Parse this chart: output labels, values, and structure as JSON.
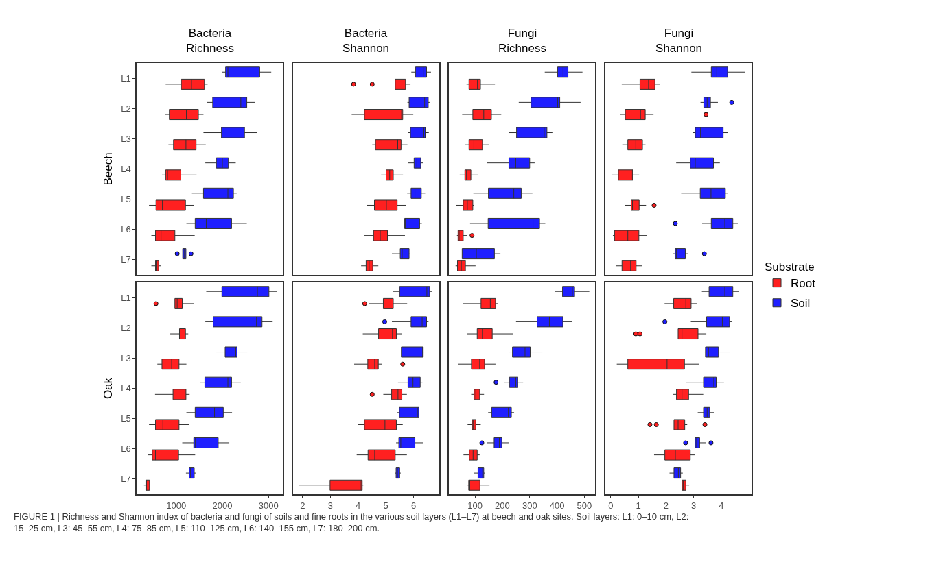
{
  "chart_data": [
    {
      "type": "box",
      "orientation": "horizontal",
      "title": "Bacteria\nRichness",
      "ylabel": "Beech",
      "categories": [
        "L1",
        "L2",
        "L3",
        "L4",
        "L5",
        "L6",
        "L7"
      ],
      "xlim": [
        140,
        3310
      ],
      "tick_labels": "y",
      "legend": "right",
      "legend_title": "Substrate",
      "series": [
        {
          "name": "Root",
          "color": "#ff2020",
          "boxes": [
            {
              "low": 770,
              "q1": 1110,
              "median": 1330,
              "q3": 1610,
              "high": 1680
            },
            {
              "low": 760,
              "q1": 850,
              "median": 1220,
              "q3": 1480,
              "high": 1590
            },
            {
              "low": 830,
              "q1": 940,
              "median": 1210,
              "q3": 1430,
              "high": 1640
            },
            {
              "low": 690,
              "q1": 770,
              "median": 810,
              "q3": 1100,
              "high": 1440
            },
            {
              "low": 410,
              "q1": 560,
              "median": 700,
              "q3": 1200,
              "high": 1390
            },
            {
              "low": 460,
              "q1": 550,
              "median": 670,
              "q3": 970,
              "high": 1400
            },
            {
              "low": 460,
              "q1": 550,
              "median": 580,
              "q3": 620,
              "high": 670
            }
          ]
        },
        {
          "name": "Soil",
          "color": "#1f1fff",
          "boxes": [
            {
              "low": 2000,
              "q1": 2070,
              "median": 2120,
              "q3": 2810,
              "high": 3060
            },
            {
              "low": 1660,
              "q1": 1790,
              "median": 2400,
              "q3": 2530,
              "high": 2710
            },
            {
              "low": 1590,
              "q1": 1980,
              "median": 2380,
              "q3": 2480,
              "high": 2750
            },
            {
              "low": 1630,
              "q1": 1870,
              "median": 2000,
              "q3": 2130,
              "high": 2290
            },
            {
              "low": 1340,
              "q1": 1590,
              "median": 2120,
              "q3": 2240,
              "high": 2310
            },
            {
              "low": 1220,
              "q1": 1410,
              "median": 1650,
              "q3": 2200,
              "high": 2530
            },
            {
              "low": 1140,
              "q1": 1140,
              "median": 1170,
              "q3": 1210,
              "high": 1210,
              "outliers": [
                1020,
                1320
              ]
            }
          ]
        }
      ]
    },
    {
      "type": "box",
      "orientation": "horizontal",
      "title": "Bacteria\nShannon",
      "categories": [
        null,
        null,
        null,
        null,
        null,
        null,
        null
      ],
      "xlim": [
        1.65,
        6.92
      ],
      "tick_labels": false,
      "series": [
        {
          "color": "#ff2020",
          "boxes": [
            {
              "low": 5.34,
              "q1": 5.34,
              "median": 5.48,
              "q3": 5.71,
              "high": 5.89,
              "outliers": [
                3.84,
                4.51
              ]
            },
            {
              "low": 3.77,
              "q1": 4.23,
              "median": 5.57,
              "q3": 5.61,
              "high": 5.99
            },
            {
              "low": 4.51,
              "q1": 4.63,
              "median": 5.43,
              "q3": 5.55,
              "high": 5.78
            },
            {
              "low": 4.83,
              "q1": 5.01,
              "median": 5.14,
              "q3": 5.27,
              "high": 5.62
            },
            {
              "low": 4.31,
              "q1": 4.59,
              "median": 5.02,
              "q3": 5.41,
              "high": 5.74
            },
            {
              "low": 4.23,
              "q1": 4.56,
              "median": 4.8,
              "q3": 5.06,
              "high": 5.69
            },
            {
              "low": 4.11,
              "q1": 4.29,
              "median": 4.4,
              "q3": 4.53,
              "high": 4.73
            }
          ]
        },
        {
          "color": "#1f1fff",
          "boxes": [
            {
              "low": 5.92,
              "q1": 6.07,
              "median": 6.35,
              "q3": 6.47,
              "high": 6.63
            },
            {
              "low": 5.78,
              "q1": 5.84,
              "median": 6.4,
              "q3": 6.53,
              "high": 6.58
            },
            {
              "low": 5.81,
              "q1": 5.89,
              "median": 6.37,
              "q3": 6.42,
              "high": 6.55
            },
            {
              "low": 5.8,
              "q1": 6.02,
              "median": 6.12,
              "q3": 6.26,
              "high": 6.34
            },
            {
              "low": 5.77,
              "q1": 5.91,
              "median": 6.05,
              "q3": 6.28,
              "high": 6.42
            },
            {
              "low": 5.68,
              "q1": 5.68,
              "median": 5.7,
              "q3": 6.22,
              "high": 6.3
            },
            {
              "low": 5.22,
              "q1": 5.52,
              "median": 5.59,
              "q3": 5.84,
              "high": 5.85
            }
          ]
        }
      ]
    },
    {
      "type": "box",
      "orientation": "horizontal",
      "title": "Fungi\nRichness",
      "categories": [
        null,
        null,
        null,
        null,
        null,
        null,
        null
      ],
      "xlim": [
        5.5,
        540
      ],
      "tick_labels": false,
      "series": [
        {
          "color": "#ff2020",
          "boxes": [
            {
              "low": 69,
              "q1": 78,
              "median": 109,
              "q3": 120,
              "high": 173
            },
            {
              "low": 53,
              "q1": 92,
              "median": 132,
              "q3": 160,
              "high": 196
            },
            {
              "low": 64,
              "q1": 78,
              "median": 96,
              "q3": 127,
              "high": 151
            },
            {
              "low": 44,
              "q1": 63,
              "median": 69,
              "q3": 85,
              "high": 112
            },
            {
              "low": 32,
              "q1": 57,
              "median": 72,
              "q3": 92,
              "high": 97
            },
            {
              "low": 34,
              "q1": 38,
              "median": 42,
              "q3": 57,
              "high": 71,
              "outliers": [
                89
              ]
            },
            {
              "low": 29,
              "q1": 36,
              "median": 50,
              "q3": 65,
              "high": 102
            }
          ]
        },
        {
          "color": "#1f1fff",
          "boxes": [
            {
              "low": 355,
              "q1": 402,
              "median": 422,
              "q3": 440,
              "high": 493
            },
            {
              "low": 260,
              "q1": 305,
              "median": 402,
              "q3": 410,
              "high": 486
            },
            {
              "low": 224,
              "q1": 252,
              "median": 353,
              "q3": 363,
              "high": 383
            },
            {
              "low": 143,
              "q1": 224,
              "median": 249,
              "q3": 300,
              "high": 318
            },
            {
              "low": 94,
              "q1": 149,
              "median": 242,
              "q3": 269,
              "high": 310
            },
            {
              "low": 82,
              "q1": 148,
              "median": 312,
              "q3": 336,
              "high": 357
            },
            {
              "low": 53,
              "q1": 53,
              "median": 105,
              "q3": 171,
              "high": 193
            }
          ]
        }
      ]
    },
    {
      "type": "box",
      "orientation": "horizontal",
      "title": "Fungi\nShannon",
      "categories": [
        null,
        null,
        null,
        null,
        null,
        null,
        null
      ],
      "xlim": [
        -0.19,
        5.1
      ],
      "tick_labels": false,
      "series": [
        {
          "color": "#ff2020",
          "boxes": [
            {
              "low": 0.4,
              "q1": 1.06,
              "median": 1.37,
              "q3": 1.6,
              "high": 1.78
            },
            {
              "low": 0.34,
              "q1": 0.53,
              "median": 1.08,
              "q3": 1.25,
              "high": 1.55,
              "outliers": [
                3.45
              ]
            },
            {
              "low": 0.42,
              "q1": 0.62,
              "median": 0.91,
              "q3": 1.15,
              "high": 1.26
            },
            {
              "low": 0.03,
              "q1": 0.28,
              "median": 0.8,
              "q3": 0.81,
              "high": 1.03
            },
            {
              "low": 0.52,
              "q1": 0.74,
              "median": 0.79,
              "q3": 1.03,
              "high": 1.28,
              "outliers": [
                1.57
              ]
            },
            {
              "low": 0.08,
              "q1": 0.14,
              "median": 0.62,
              "q3": 1.02,
              "high": 1.31
            },
            {
              "low": 0.18,
              "q1": 0.41,
              "median": 0.72,
              "q3": 0.92,
              "high": 1.13
            }
          ]
        },
        {
          "color": "#1f1fff",
          "boxes": [
            {
              "low": 2.92,
              "q1": 3.64,
              "median": 3.84,
              "q3": 4.23,
              "high": 4.85
            },
            {
              "low": 3.25,
              "q1": 3.37,
              "median": 3.49,
              "q3": 3.61,
              "high": 3.88,
              "outliers": [
                4.38
              ]
            },
            {
              "low": 2.97,
              "q1": 3.06,
              "median": 3.25,
              "q3": 4.07,
              "high": 4.23
            },
            {
              "low": 2.37,
              "q1": 2.88,
              "median": 3.06,
              "q3": 3.72,
              "high": 3.95
            },
            {
              "low": 2.55,
              "q1": 3.24,
              "median": 3.63,
              "q3": 4.15,
              "high": 4.23
            },
            {
              "low": 3.31,
              "q1": 3.64,
              "median": 4.13,
              "q3": 4.42,
              "high": 4.6,
              "outliers": [
                2.34
              ]
            },
            {
              "low": 2.25,
              "q1": 2.34,
              "median": 2.38,
              "q3": 2.7,
              "high": 2.8,
              "outliers": [
                3.39
              ]
            }
          ]
        }
      ]
    },
    {
      "type": "box",
      "orientation": "horizontal",
      "ylabel": "Oak",
      "categories": [
        "L1",
        "L2",
        "L3",
        "L4",
        "L5",
        "L6",
        "L7"
      ],
      "xlim": [
        140,
        3310
      ],
      "xticks": [
        1000,
        2000,
        3000
      ],
      "series": [
        {
          "color": "#ff2020",
          "boxes": [
            {
              "low": 970,
              "q1": 970,
              "median": 1020,
              "q3": 1130,
              "high": 1380,
              "outliers": [
                560
              ]
            },
            {
              "low": 870,
              "q1": 1070,
              "median": 1100,
              "q3": 1200,
              "high": 1260
            },
            {
              "low": 590,
              "q1": 690,
              "median": 900,
              "q3": 1060,
              "high": 1220
            },
            {
              "low": 540,
              "q1": 930,
              "median": 1190,
              "q3": 1210,
              "high": 1290
            },
            {
              "low": 410,
              "q1": 550,
              "median": 710,
              "q3": 1060,
              "high": 1280
            },
            {
              "low": 390,
              "q1": 480,
              "median": 550,
              "q3": 1050,
              "high": 1410
            },
            {
              "low": 300,
              "q1": 340,
              "median": 350,
              "q3": 420,
              "high": 420
            }
          ]
        },
        {
          "color": "#1f1fff",
          "boxes": [
            {
              "low": 1650,
              "q1": 1990,
              "median": 2760,
              "q3": 3010,
              "high": 3180
            },
            {
              "low": 1630,
              "q1": 1800,
              "median": 2740,
              "q3": 2860,
              "high": 3090
            },
            {
              "low": 1870,
              "q1": 2060,
              "median": 2290,
              "q3": 2320,
              "high": 2540
            },
            {
              "low": 1510,
              "q1": 1620,
              "median": 2120,
              "q3": 2200,
              "high": 2400
            },
            {
              "low": 1220,
              "q1": 1410,
              "median": 1830,
              "q3": 2020,
              "high": 2210
            },
            {
              "low": 1130,
              "q1": 1380,
              "median": 1410,
              "q3": 1910,
              "high": 2150
            },
            {
              "low": 1210,
              "q1": 1280,
              "median": 1310,
              "q3": 1390,
              "high": 1420
            }
          ]
        }
      ]
    },
    {
      "type": "box",
      "orientation": "horizontal",
      "categories": [
        null,
        null,
        null,
        null,
        null,
        null,
        null
      ],
      "xlim": [
        1.65,
        6.92
      ],
      "xticks": [
        2,
        3,
        4,
        5,
        6
      ],
      "tick_labels": "x",
      "series": [
        {
          "color": "#ff2020",
          "boxes": [
            {
              "low": 4.38,
              "q1": 4.91,
              "median": 5.01,
              "q3": 5.27,
              "high": 5.77,
              "outliers": [
                4.24
              ]
            },
            {
              "low": 4.17,
              "q1": 4.74,
              "median": 5.24,
              "q3": 5.38,
              "high": 5.59
            },
            {
              "low": 3.86,
              "q1": 4.35,
              "median": 4.6,
              "q3": 4.73,
              "high": 4.86,
              "outliers": [
                5.61
              ]
            },
            {
              "low": 4.91,
              "q1": 5.21,
              "median": 5.44,
              "q3": 5.58,
              "high": 5.76,
              "outliers": [
                4.51
              ]
            },
            {
              "low": 3.99,
              "q1": 4.23,
              "median": 4.97,
              "q3": 5.38,
              "high": 5.61
            },
            {
              "low": 3.95,
              "q1": 4.36,
              "median": 4.6,
              "q3": 5.34,
              "high": 5.76
            },
            {
              "low": 1.88,
              "q1": 2.99,
              "median": 4.11,
              "q3": 4.15,
              "high": 4.19
            }
          ]
        },
        {
          "color": "#1f1fff",
          "boxes": [
            {
              "low": 5.26,
              "q1": 5.5,
              "median": 6.48,
              "q3": 6.58,
              "high": 6.68
            },
            {
              "low": 5.22,
              "q1": 5.91,
              "median": 6.31,
              "q3": 6.47,
              "high": 6.54,
              "outliers": [
                4.96
              ]
            },
            {
              "low": 5.56,
              "q1": 5.56,
              "median": 6.33,
              "q3": 6.35,
              "high": 6.39
            },
            {
              "low": 5.44,
              "q1": 5.8,
              "median": 5.98,
              "q3": 6.24,
              "high": 6.32
            },
            {
              "low": 5.4,
              "q1": 5.49,
              "median": 6.14,
              "q3": 6.19,
              "high": 6.19
            },
            {
              "low": 5.37,
              "q1": 5.47,
              "median": 5.54,
              "q3": 6.05,
              "high": 6.34
            },
            {
              "low": 5.33,
              "q1": 5.37,
              "median": 5.42,
              "q3": 5.5,
              "high": 5.54
            }
          ]
        }
      ]
    },
    {
      "type": "box",
      "orientation": "horizontal",
      "categories": [
        null,
        null,
        null,
        null,
        null,
        null,
        null
      ],
      "xlim": [
        5.5,
        540
      ],
      "xticks": [
        100,
        200,
        300,
        400,
        500
      ],
      "tick_labels": "x",
      "series": [
        {
          "color": "#ff2020",
          "boxes": [
            {
              "low": 56,
              "q1": 122,
              "median": 156,
              "q3": 175,
              "high": 184
            },
            {
              "low": 72,
              "q1": 108,
              "median": 127,
              "q3": 163,
              "high": 238
            },
            {
              "low": 39,
              "q1": 87,
              "median": 117,
              "q3": 135,
              "high": 175
            },
            {
              "low": 86,
              "q1": 97,
              "median": 103,
              "q3": 117,
              "high": 133
            },
            {
              "low": 73,
              "q1": 90,
              "median": 93,
              "q3": 103,
              "high": 121
            },
            {
              "low": 58,
              "q1": 79,
              "median": 93,
              "q3": 108,
              "high": 117
            },
            {
              "low": 73,
              "q1": 77,
              "median": 81,
              "q3": 118,
              "high": 153
            }
          ]
        },
        {
          "color": "#1f1fff",
          "boxes": [
            {
              "low": 392,
              "q1": 420,
              "median": 456,
              "q3": 464,
              "high": 518
            },
            {
              "low": 250,
              "q1": 327,
              "median": 372,
              "q3": 421,
              "high": 455
            },
            {
              "low": 224,
              "q1": 237,
              "median": 283,
              "q3": 302,
              "high": 347
            },
            {
              "low": 206,
              "q1": 226,
              "median": 249,
              "q3": 255,
              "high": 276,
              "outliers": [
                177
              ]
            },
            {
              "low": 148,
              "q1": 161,
              "median": 222,
              "q3": 233,
              "high": 243
            },
            {
              "low": 143,
              "q1": 170,
              "median": 189,
              "q3": 198,
              "high": 224,
              "outliers": [
                125
              ]
            },
            {
              "low": 97,
              "q1": 111,
              "median": 128,
              "q3": 132,
              "high": 135
            }
          ]
        }
      ]
    },
    {
      "type": "box",
      "orientation": "horizontal",
      "categories": [
        null,
        null,
        null,
        null,
        null,
        null,
        null
      ],
      "xlim": [
        -0.19,
        5.1
      ],
      "xticks": [
        0,
        1,
        2,
        3,
        4
      ],
      "tick_labels": "x",
      "annotations": [
        "FIGURE 1 | Richness and Shannon index of bacteria and fungi of soils and fine roots in the various soil layers (L1–L7) at beech and oak sites. Soil layers: L1: 0–10 cm, L2: 15–25 cm, L3: 45–55 cm, L4: 75–85 cm, L5: 110–125 cm, L6: 140–155 cm, L7: 180–200 cm."
      ],
      "series": [
        {
          "color": "#ff2020",
          "boxes": [
            {
              "low": 1.95,
              "q1": 2.28,
              "median": 2.72,
              "q3": 2.91,
              "high": 3.11
            },
            {
              "low": 2.44,
              "q1": 2.44,
              "median": 2.58,
              "q3": 3.16,
              "high": 3.46,
              "outliers": [
                0.91,
                1.06
              ]
            },
            {
              "low": 0.22,
              "q1": 0.62,
              "median": 2.04,
              "q3": 2.67,
              "high": 3.2
            },
            {
              "low": 2.25,
              "q1": 2.38,
              "median": 2.58,
              "q3": 2.82,
              "high": 3.35
            },
            {
              "low": 2.29,
              "q1": 2.29,
              "median": 2.44,
              "q3": 2.68,
              "high": 2.77,
              "outliers": [
                1.42,
                1.65,
                3.41
              ]
            },
            {
              "low": 1.57,
              "q1": 1.96,
              "median": 2.34,
              "q3": 2.88,
              "high": 3.06
            },
            {
              "low": 2.58,
              "q1": 2.59,
              "median": 2.63,
              "q3": 2.72,
              "high": 2.84
            }
          ]
        },
        {
          "color": "#1f1fff",
          "boxes": [
            {
              "low": 3.3,
              "q1": 3.56,
              "median": 4.13,
              "q3": 4.42,
              "high": 4.63
            },
            {
              "low": 2.9,
              "q1": 3.47,
              "median": 4.04,
              "q3": 4.3,
              "high": 4.4,
              "outliers": [
                1.96
              ]
            },
            {
              "low": 3.38,
              "q1": 3.43,
              "median": 3.54,
              "q3": 3.9,
              "high": 4.31
            },
            {
              "low": 2.73,
              "q1": 3.36,
              "median": 3.73,
              "q3": 3.82,
              "high": 4.1
            },
            {
              "low": 3.15,
              "q1": 3.36,
              "median": 3.49,
              "q3": 3.58,
              "high": 3.75
            },
            {
              "low": 3.06,
              "q1": 3.06,
              "median": 3.11,
              "q3": 3.22,
              "high": 3.44,
              "outliers": [
                2.71,
                3.63
              ]
            },
            {
              "low": 2.13,
              "q1": 2.29,
              "median": 2.45,
              "q3": 2.53,
              "high": 2.61
            }
          ]
        }
      ]
    }
  ]
}
